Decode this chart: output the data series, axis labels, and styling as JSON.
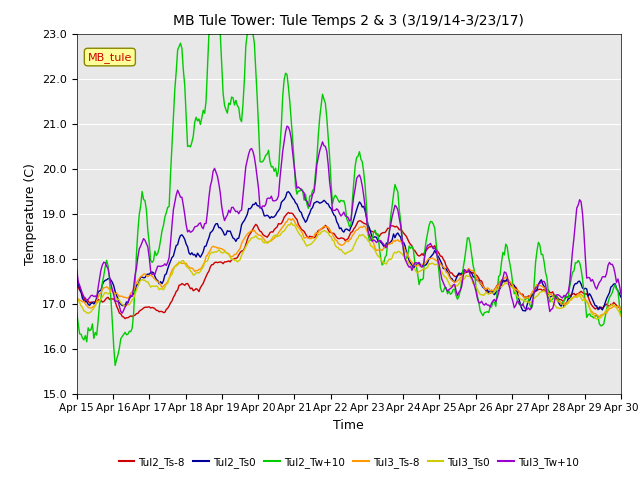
{
  "title": "MB Tule Tower: Tule Temps 2 & 3 (3/19/14-3/23/17)",
  "xlabel": "Time",
  "ylabel": "Temperature (C)",
  "ylim": [
    15.0,
    23.0
  ],
  "yticks": [
    15.0,
    16.0,
    17.0,
    18.0,
    19.0,
    20.0,
    21.0,
    22.0,
    23.0
  ],
  "xtick_labels": [
    "Apr 15",
    "Apr 16",
    "Apr 17",
    "Apr 18",
    "Apr 19",
    "Apr 20",
    "Apr 21",
    "Apr 22",
    "Apr 23",
    "Apr 24",
    "Apr 25",
    "Apr 26",
    "Apr 27",
    "Apr 28",
    "Apr 29",
    "Apr 30"
  ],
  "legend_label": "MB_tule",
  "bg_color": "#e8e8e8",
  "lines": {
    "Tul2_Ts-8": {
      "color": "#cc0000",
      "lw": 1.0
    },
    "Tul2_Ts0": {
      "color": "#000099",
      "lw": 1.0
    },
    "Tul2_Tw+10": {
      "color": "#00cc00",
      "lw": 1.0
    },
    "Tul3_Ts-8": {
      "color": "#ff9900",
      "lw": 1.0
    },
    "Tul3_Ts0": {
      "color": "#cccc00",
      "lw": 1.0
    },
    "Tul3_Tw+10": {
      "color": "#9900cc",
      "lw": 1.0
    }
  },
  "figsize": [
    6.4,
    4.8
  ],
  "dpi": 100
}
